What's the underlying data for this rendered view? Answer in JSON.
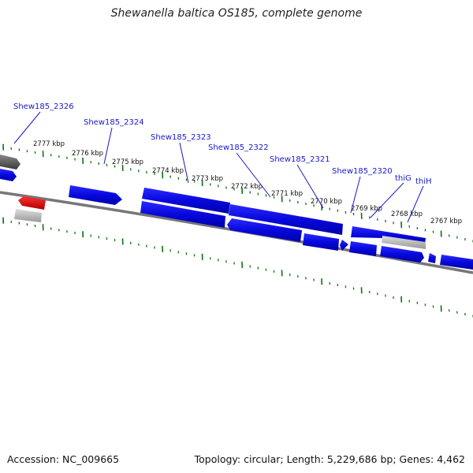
{
  "title": "Shewanella baltica OS185, complete genome",
  "accession": "Accession: NC_009665",
  "summary": "Topology: circular; Length: 5,229,686 bp; Genes: 4,462",
  "scale_labels": [
    "2777 kbp",
    "2776 kbp",
    "2775 kbp",
    "2774 kbp",
    "2773 kbp",
    "2772 kbp",
    "2771 kbp",
    "2770 kbp",
    "2769 kbp",
    "2768 kbp",
    "2767 kbp"
  ],
  "gene_labels": [
    "Shew185_2326",
    "Shew185_2324",
    "Shew185_2323",
    "Shew185_2322",
    "Shew185_2321",
    "Shew185_2320",
    "thiG",
    "thiH"
  ],
  "colors": {
    "forward_gene": "#0a0ae0",
    "reverse_gene": "#0a0ae0",
    "rna_gene": "#e01010",
    "pseudo_gene": "#aaaaaa",
    "dark_gene": "#555555",
    "backbone": "#777777",
    "tick": "#107010",
    "leader": "#1818cc"
  }
}
